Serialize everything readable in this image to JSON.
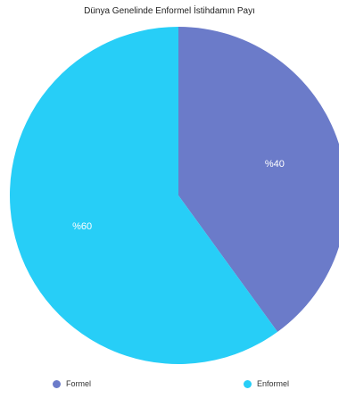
{
  "colors": {
    "formel": "#6b7bc9",
    "enformel": "#27cef7",
    "background": "#ffffff"
  },
  "chart_data": {
    "type": "pie",
    "title": "Dünya Genelinde Enformel İstihdamın Payı",
    "categories": [
      "Formel",
      "Enformel"
    ],
    "values": [
      40,
      60
    ],
    "data_labels": [
      "%40",
      "%60"
    ],
    "legend_position": "bottom"
  }
}
